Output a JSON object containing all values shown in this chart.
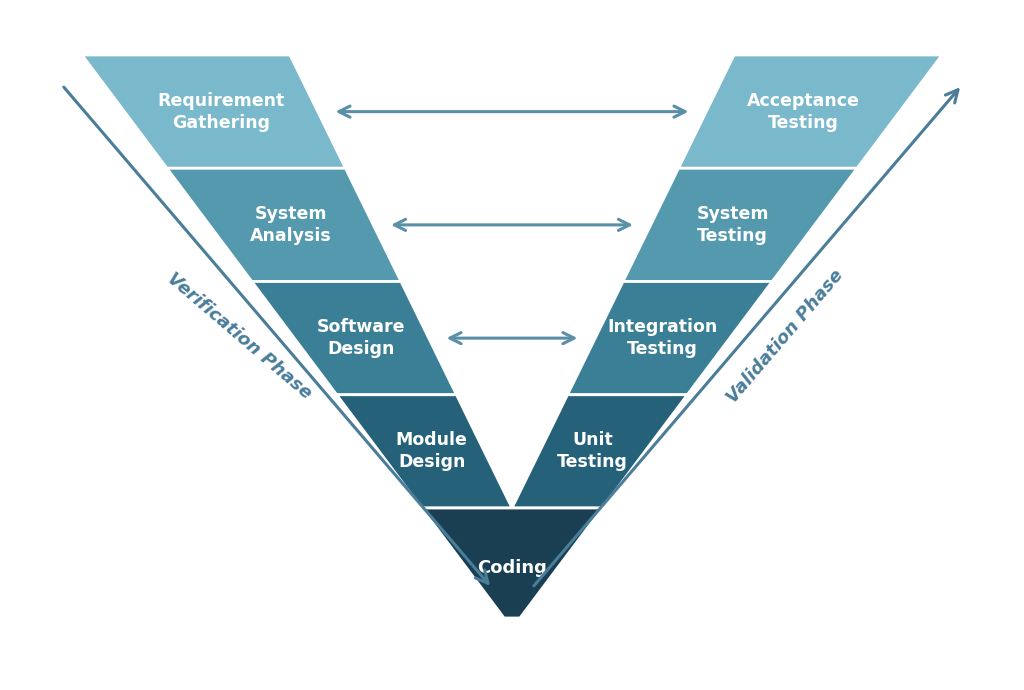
{
  "background_color": "#ffffff",
  "left_labels": [
    "Requirement\nGathering",
    "System\nAnalysis",
    "Software\nDesign",
    "Module\nDesign"
  ],
  "right_labels": [
    "Acceptance\nTesting",
    "System\nTesting",
    "Integration\nTesting",
    "Unit\nTesting"
  ],
  "coding_label": "Coding",
  "left_colors": [
    "#7ab8cc",
    "#5499ae",
    "#3a7f96",
    "#25627a"
  ],
  "right_colors": [
    "#7ab8cc",
    "#5499ae",
    "#3a7f96",
    "#25627a"
  ],
  "coding_color": "#1b3f52",
  "verification_label": "Verification Phase",
  "validation_label": "Validation Phase",
  "text_color": "#ffffff",
  "arrow_color": "#5a8fa8",
  "phase_label_color": "#4a7d9a"
}
